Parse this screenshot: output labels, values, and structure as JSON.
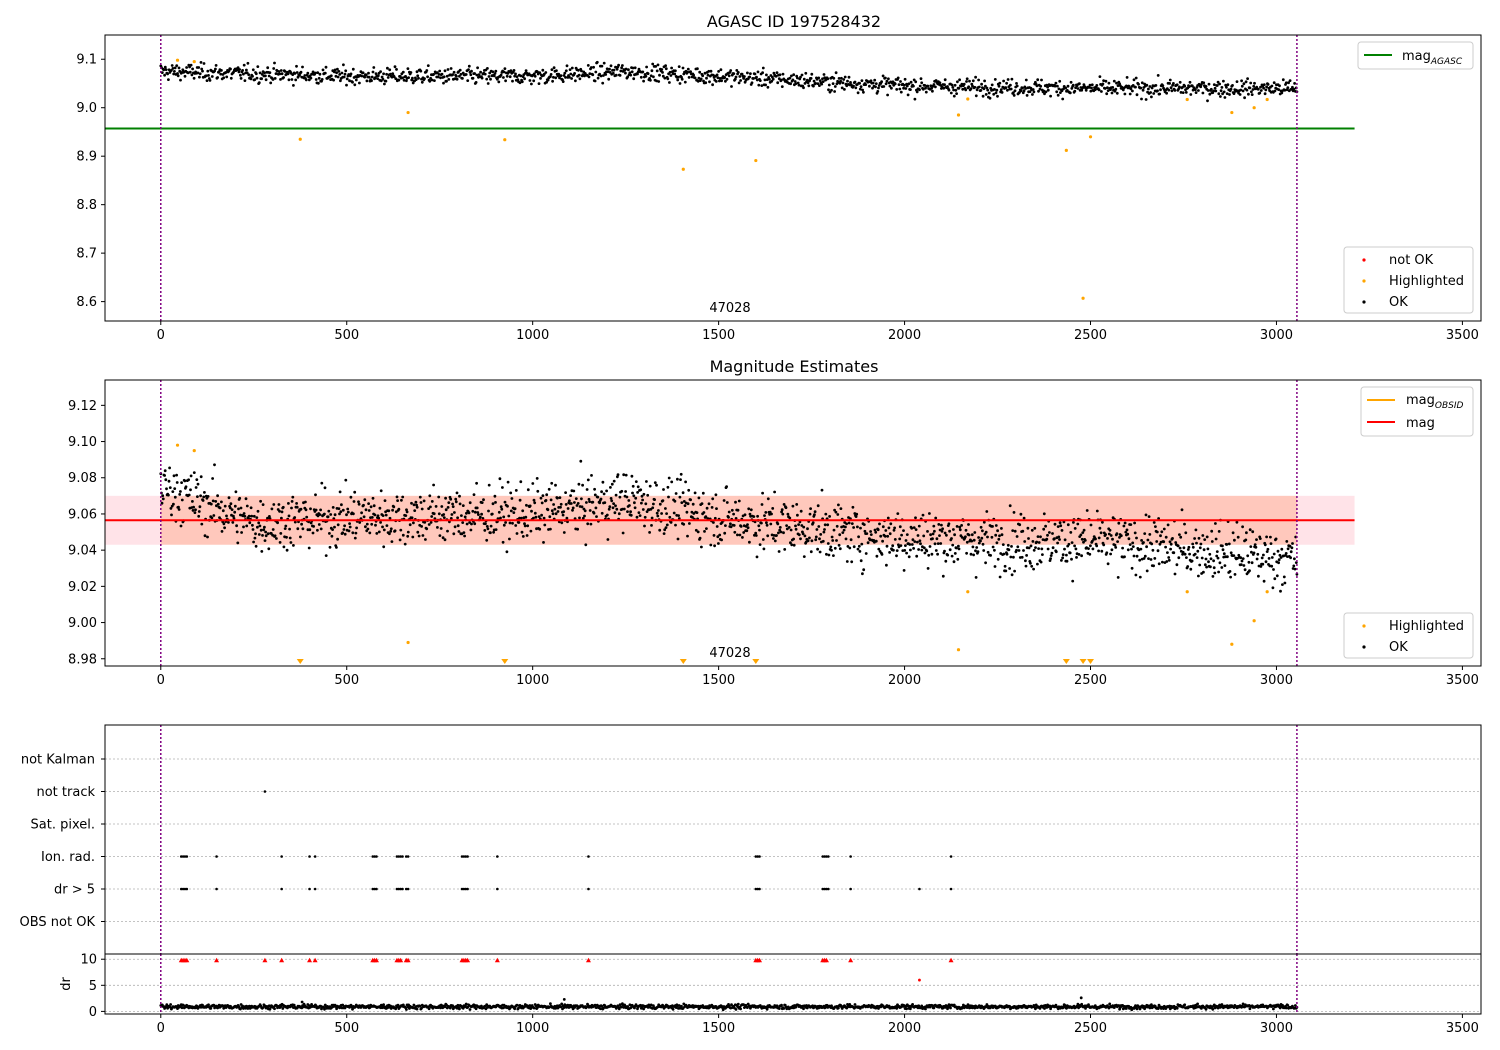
{
  "chart_data": [
    {
      "type": "scatter",
      "title": "AGASC ID 197528432",
      "xlim": [
        -150,
        3550
      ],
      "ylim": [
        8.56,
        9.15
      ],
      "x_ticks": [
        "0",
        "500",
        "1000",
        "1500",
        "2000",
        "2500",
        "3000",
        "3500"
      ],
      "y_ticks": [
        "8.6",
        "8.7",
        "8.8",
        "8.9",
        "9.0",
        "9.1"
      ],
      "vlines": [
        0,
        3055
      ],
      "hline": {
        "name": "mag_AGASC",
        "value": 8.957,
        "x_range": [
          -150,
          3210
        ]
      },
      "annotation": "47028",
      "legend_top": [
        {
          "label": "mag",
          "sub": "AGASC"
        }
      ],
      "legend_bottom": [
        "not OK",
        "Highlighted",
        "OK"
      ],
      "series": [
        {
          "name": "OK",
          "trend": [
            [
              0,
              9.075
            ],
            [
              500,
              9.065
            ],
            [
              1000,
              9.065
            ],
            [
              1250,
              9.075
            ],
            [
              1500,
              9.065
            ],
            [
              2000,
              9.045
            ],
            [
              2500,
              9.04
            ],
            [
              3055,
              9.04
            ]
          ],
          "spread": 0.012,
          "n": 1500
        },
        {
          "name": "Highlighted",
          "points": [
            [
              45,
              9.098
            ],
            [
              90,
              9.095
            ],
            [
              375,
              8.935
            ],
            [
              665,
              8.99
            ],
            [
              925,
              8.934
            ],
            [
              1405,
              8.873
            ],
            [
              1600,
              8.891
            ],
            [
              2145,
              8.985
            ],
            [
              2170,
              9.018
            ],
            [
              2435,
              8.912
            ],
            [
              2480,
              8.607
            ],
            [
              2500,
              8.94
            ],
            [
              2760,
              9.017
            ],
            [
              2880,
              8.99
            ],
            [
              2940,
              9.0
            ],
            [
              2975,
              9.017
            ]
          ]
        }
      ]
    },
    {
      "type": "scatter",
      "title": "Magnitude Estimates",
      "xlim": [
        -150,
        3550
      ],
      "ylim": [
        8.976,
        9.134
      ],
      "x_ticks": [
        "0",
        "500",
        "1000",
        "1500",
        "2000",
        "2500",
        "3000",
        "3500"
      ],
      "y_ticks": [
        "8.98",
        "9.00",
        "9.02",
        "9.04",
        "9.06",
        "9.08",
        "9.10",
        "9.12"
      ],
      "vlines": [
        0,
        3055
      ],
      "hline": {
        "name": "mag",
        "value": 9.0565,
        "x_range": [
          -150,
          3210
        ]
      },
      "band": [
        9.043,
        9.07
      ],
      "annotation": "47028",
      "legend_top": [
        {
          "label": "mag",
          "sub": "OBSID"
        },
        {
          "label": "mag",
          "sub": ""
        }
      ],
      "legend_bottom": [
        "Highlighted",
        "OK"
      ],
      "series": [
        {
          "name": "OK",
          "trend": [
            [
              0,
              9.075
            ],
            [
              250,
              9.055
            ],
            [
              500,
              9.058
            ],
            [
              1000,
              9.06
            ],
            [
              1250,
              9.068
            ],
            [
              1500,
              9.058
            ],
            [
              1900,
              9.048
            ],
            [
              2200,
              9.045
            ],
            [
              2500,
              9.045
            ],
            [
              2800,
              9.04
            ],
            [
              3055,
              9.035
            ]
          ],
          "spread": 0.011,
          "n": 1800
        },
        {
          "name": "Highlighted",
          "points": [
            [
              45,
              9.098
            ],
            [
              90,
              9.095
            ],
            [
              665,
              8.989
            ],
            [
              2145,
              8.985
            ],
            [
              2170,
              9.017
            ],
            [
              2760,
              9.017
            ],
            [
              2880,
              8.988
            ],
            [
              2940,
              9.001
            ],
            [
              2975,
              9.017
            ]
          ]
        },
        {
          "name": "Highlighted (below range)",
          "x": [
            375,
            925,
            1405,
            1600,
            2435,
            2480,
            2500
          ]
        }
      ]
    },
    {
      "type": "scatter",
      "title": "",
      "xlim": [
        -150,
        3550
      ],
      "vlines": [
        0,
        3055
      ],
      "categories": [
        "not Kalman",
        "not track",
        "Sat. pixel.",
        "Ion. rad.",
        "dr > 5",
        "OBS not OK"
      ],
      "flags": {
        "not track": [
          280
        ],
        "Ion. rad.": [
          55,
          60,
          65,
          70,
          150,
          325,
          400,
          415,
          570,
          575,
          580,
          635,
          640,
          645,
          650,
          660,
          665,
          810,
          815,
          820,
          825,
          905,
          1150,
          1600,
          1605,
          1610,
          1780,
          1785,
          1790,
          1795,
          1855,
          2125
        ],
        "dr > 5": [
          55,
          60,
          65,
          70,
          150,
          325,
          400,
          415,
          570,
          575,
          580,
          635,
          640,
          645,
          650,
          660,
          665,
          810,
          815,
          820,
          825,
          905,
          1150,
          1600,
          1605,
          1610,
          1780,
          1785,
          1790,
          1795,
          1855,
          2040,
          2125
        ]
      },
      "dr": {
        "ylabel": "dr",
        "y_ticks": [
          "0",
          "5",
          "10"
        ],
        "ylim": [
          -0.5,
          11
        ],
        "x_ticks": [
          "0",
          "500",
          "1000",
          "1500",
          "2000",
          "2500",
          "3000",
          "3500"
        ],
        "baseline_mean": 0.9,
        "spread": 0.3,
        "n": 1500,
        "high": [
          [
            55,
            9.8
          ],
          [
            60,
            9.8
          ],
          [
            65,
            9.8
          ],
          [
            70,
            9.8
          ],
          [
            150,
            9.8
          ],
          [
            280,
            9.8
          ],
          [
            325,
            9.8
          ],
          [
            400,
            9.8
          ],
          [
            415,
            9.8
          ],
          [
            570,
            9.8
          ],
          [
            575,
            9.8
          ],
          [
            580,
            9.8
          ],
          [
            635,
            9.8
          ],
          [
            640,
            9.8
          ],
          [
            645,
            9.8
          ],
          [
            660,
            9.8
          ],
          [
            665,
            9.8
          ],
          [
            810,
            9.8
          ],
          [
            815,
            9.8
          ],
          [
            820,
            9.8
          ],
          [
            825,
            9.8
          ],
          [
            905,
            9.8
          ],
          [
            1150,
            9.8
          ],
          [
            1600,
            9.8
          ],
          [
            1605,
            9.8
          ],
          [
            1610,
            9.8
          ],
          [
            1780,
            9.8
          ],
          [
            1785,
            9.8
          ],
          [
            1790,
            9.8
          ],
          [
            1855,
            9.8
          ],
          [
            2125,
            9.8
          ],
          [
            2040,
            6.0
          ]
        ],
        "spikes": [
          [
            1085,
            2.3
          ],
          [
            2475,
            2.6
          ],
          [
            380,
            1.8
          ]
        ]
      }
    }
  ],
  "colors": {
    "ok": "#000000",
    "highlighted": "#ffa500",
    "not_ok": "#ff0000",
    "agasc_line": "#008000",
    "mag_line": "#ff0000",
    "obsid_line": "#ffa500",
    "vline": "#800080",
    "band_orange": "#ffa07a",
    "band_pink": "#ffc0cb",
    "grid": "#b0b0b0"
  }
}
